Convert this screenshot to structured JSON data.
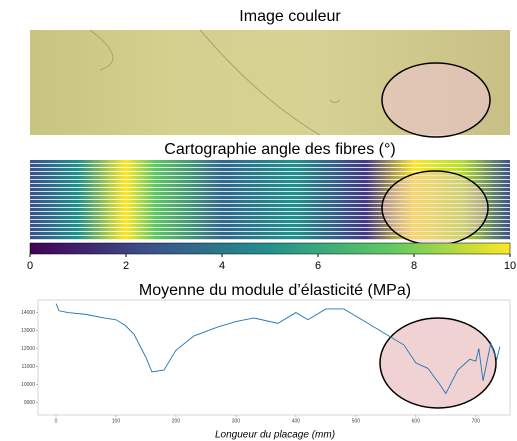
{
  "chart_data": [
    {
      "type": "image",
      "title": "Image couleur"
    },
    {
      "type": "heatmap",
      "title": "Cartographie angle des fibres (°)",
      "colorbar_lim": [
        0,
        10
      ],
      "colorbar_ticks": [
        0,
        2,
        4,
        6,
        8,
        10
      ]
    },
    {
      "type": "line",
      "title": "Moyenne du module d’élasticité (MPa)",
      "x_label": "Longueur du placage (mm)",
      "x": [
        0,
        5,
        20,
        50,
        80,
        100,
        115,
        130,
        150,
        160,
        180,
        200,
        230,
        270,
        300,
        330,
        370,
        400,
        420,
        450,
        480,
        500,
        540,
        580,
        600,
        620,
        640,
        650,
        670,
        690,
        700,
        705,
        712,
        725,
        730,
        735,
        740
      ],
      "series": [
        {
          "color": "#1f77b4",
          "values": [
            14500,
            14100,
            14000,
            13900,
            13700,
            13600,
            13300,
            12800,
            11500,
            10700,
            10800,
            11900,
            12700,
            13200,
            13500,
            13700,
            13400,
            14000,
            13600,
            14200,
            14200,
            13800,
            13000,
            12200,
            11200,
            10900,
            10000,
            9500,
            10800,
            11400,
            11300,
            12000,
            10200,
            12300,
            11800,
            11400,
            12100
          ]
        }
      ],
      "xlim": [
        -30,
        757
      ],
      "ylim": [
        8300,
        14700
      ],
      "xticks": [
        0,
        100,
        200,
        300,
        400,
        500,
        600,
        700
      ],
      "yticks": [
        9000,
        10000,
        11000,
        12000,
        13000,
        14000
      ]
    }
  ]
}
